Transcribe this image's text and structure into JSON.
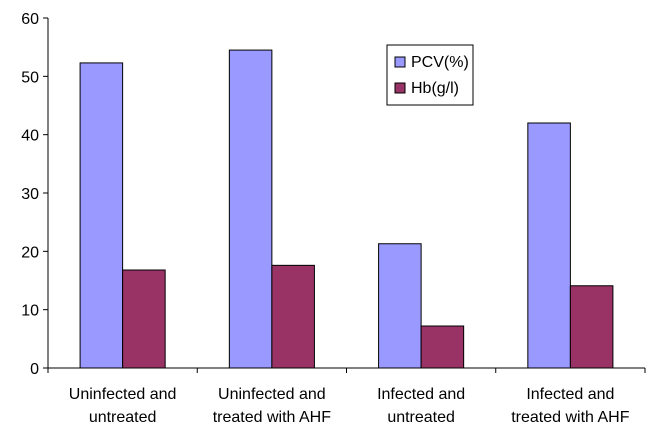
{
  "chart_data": {
    "type": "bar",
    "categories": [
      [
        "Uninfected and",
        "untreated"
      ],
      [
        "Uninfected and",
        "treated with AHF"
      ],
      [
        "Infected and",
        "untreated"
      ],
      [
        "Infected and",
        "treated with AHF"
      ]
    ],
    "series": [
      {
        "name": "PCV(%)",
        "color": "#9999ff",
        "values": [
          52.3,
          54.5,
          21.3,
          42.0
        ]
      },
      {
        "name": "Hb(g/l)",
        "color": "#993366",
        "values": [
          16.8,
          17.6,
          7.2,
          14.1
        ]
      }
    ],
    "ylim": [
      0,
      60
    ],
    "yticks": [
      0,
      10,
      20,
      30,
      40,
      50,
      60
    ],
    "xlabel": "",
    "ylabel": "",
    "title": "",
    "grid": false,
    "legend_position": "top-right"
  }
}
